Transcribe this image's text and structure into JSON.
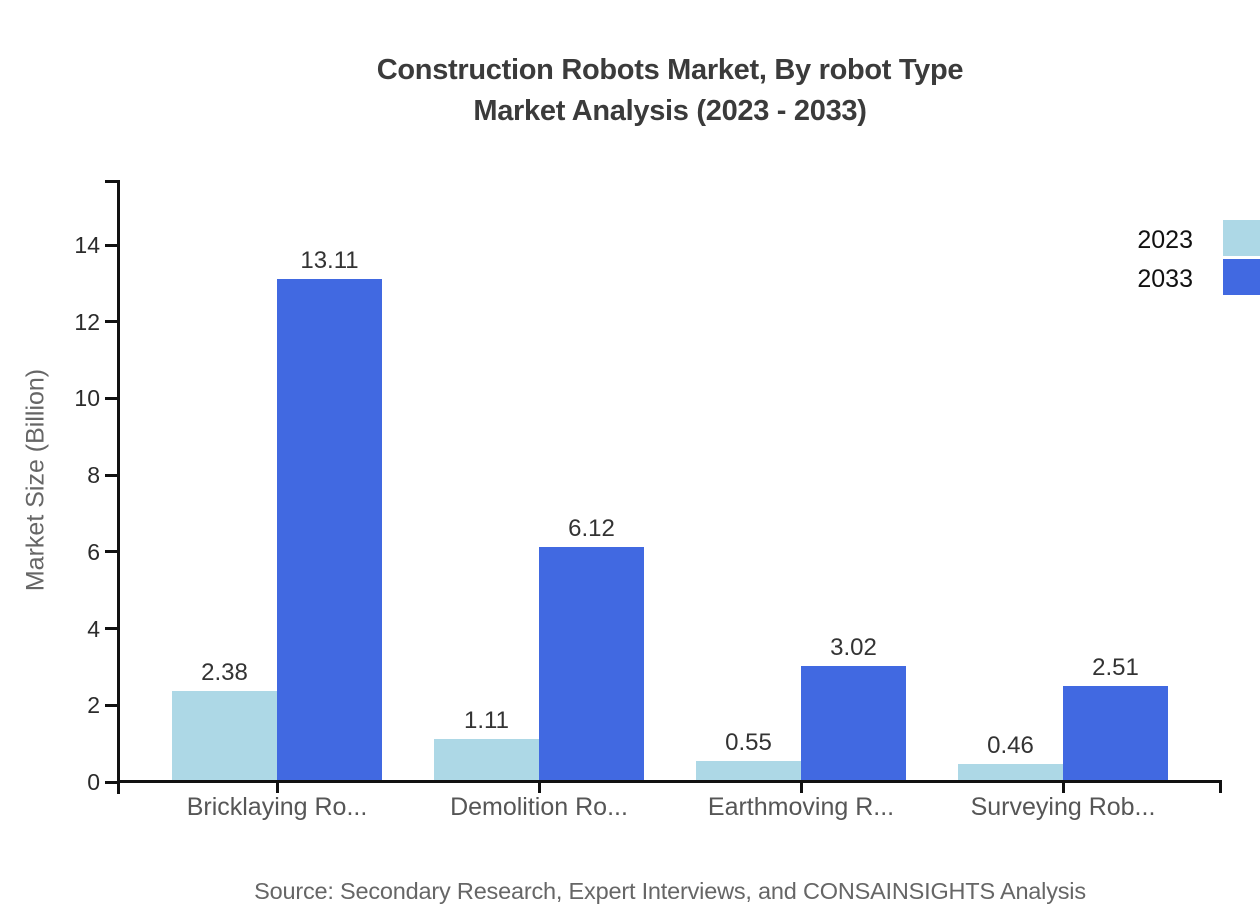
{
  "title": {
    "line1": "Construction Robots Market, By robot Type",
    "line2": "Market Analysis (2023 - 2033)"
  },
  "source": "Source: Secondary Research, Expert Interviews, and CONSAINSIGHTS Analysis",
  "legend": {
    "items": [
      {
        "label": "2023",
        "color": "#ADD8E6"
      },
      {
        "label": "2033",
        "color": "#4169E1"
      }
    ],
    "position": "top-right"
  },
  "colors": {
    "title": "#3b3b3b",
    "axis": "#111111",
    "tick_label": "#2b2b2b",
    "value_label": "#333333",
    "category_label": "#565656",
    "ylabel": "#666666",
    "legend_label": "#111111",
    "source": "#666666",
    "series_2023": "#ADD8E6",
    "series_2033": "#4169E1",
    "background": "#ffffff"
  },
  "chart_data": {
    "type": "bar",
    "title": "Construction Robots Market, By robot Type — Market Analysis (2023 - 2033)",
    "categories": [
      "Bricklaying Ro...",
      "Demolition Ro...",
      "Earthmoving R...",
      "Surveying Rob..."
    ],
    "series": [
      {
        "name": "2023",
        "color": "#ADD8E6",
        "values": [
          2.38,
          1.11,
          0.55,
          0.46
        ]
      },
      {
        "name": "2033",
        "color": "#4169E1",
        "values": [
          13.11,
          6.12,
          3.02,
          2.51
        ]
      }
    ],
    "xlabel": "",
    "ylabel": "Market Size (Billion)",
    "ylim": [
      0,
      15.7
    ],
    "yticks": [
      0,
      2,
      4,
      6,
      8,
      10,
      12,
      14
    ],
    "grid": false,
    "value_labels": true,
    "legend_position": "top-right"
  }
}
